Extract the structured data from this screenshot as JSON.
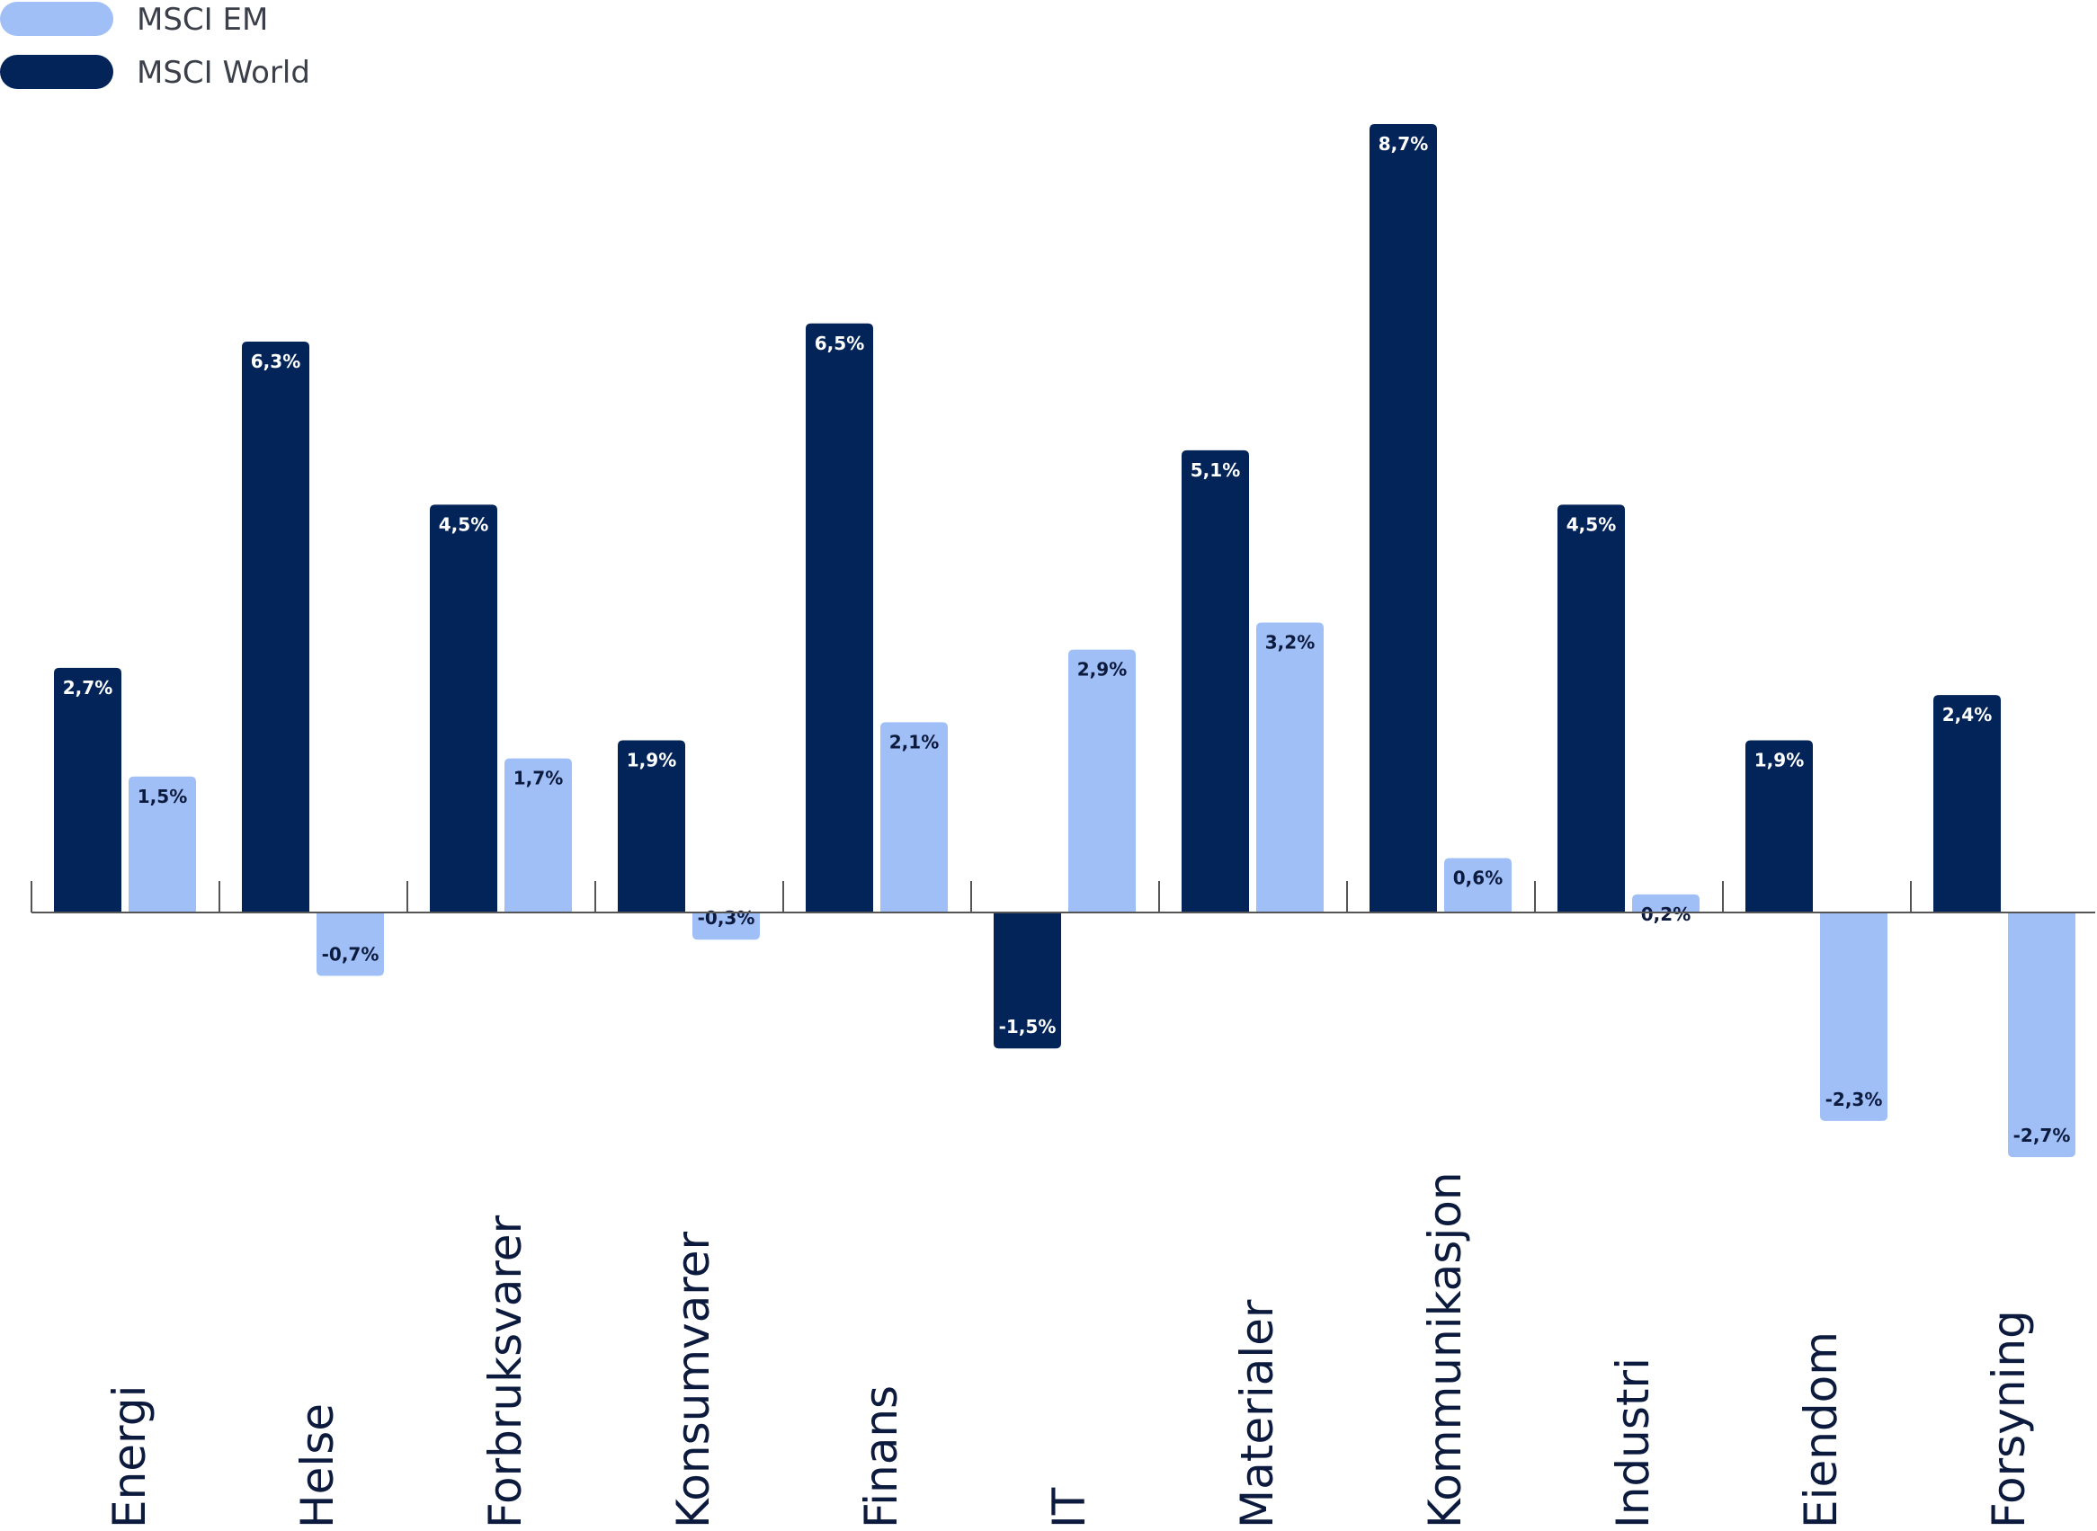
{
  "colors": {
    "msci_world": "#022459",
    "msci_em": "#a0bff7",
    "axis": "#555555"
  },
  "legend": [
    {
      "label": "MSCI EM",
      "color": "#a0bff7"
    },
    {
      "label": "MSCI World",
      "color": "#022459"
    }
  ],
  "chart_data": {
    "type": "bar",
    "categories": [
      "Energi",
      "Helse",
      "Forbruksvarer",
      "Konsumvarer",
      "Finans",
      "IT",
      "Materialer",
      "Kommunikasjon",
      "Industri",
      "Eiendom",
      "Forsyning"
    ],
    "series": [
      {
        "name": "MSCI World",
        "values": [
          2.7,
          6.3,
          4.5,
          1.9,
          6.5,
          -1.5,
          5.1,
          8.7,
          4.5,
          1.9,
          2.4
        ],
        "labels": [
          "2,7%",
          "6,3%",
          "4,5%",
          "1,9%",
          "6,5%",
          "-1,5%",
          "5,1%",
          "8,7%",
          "4,5%",
          "1,9%",
          "2,4%"
        ]
      },
      {
        "name": "MSCI EM",
        "values": [
          1.5,
          -0.7,
          1.7,
          -0.3,
          2.1,
          2.9,
          3.2,
          0.6,
          0.2,
          -2.3,
          -2.7
        ],
        "labels": [
          "1,5%",
          "-0,7%",
          "1,7%",
          "-0,3%",
          "2,1%",
          "2,9%",
          "3,2%",
          "0,6%",
          "0,2%",
          "-2,3%",
          "-2,7%"
        ]
      }
    ],
    "legend_position": "top-left",
    "grid": false,
    "ylim": [
      -2.7,
      8.7
    ]
  }
}
